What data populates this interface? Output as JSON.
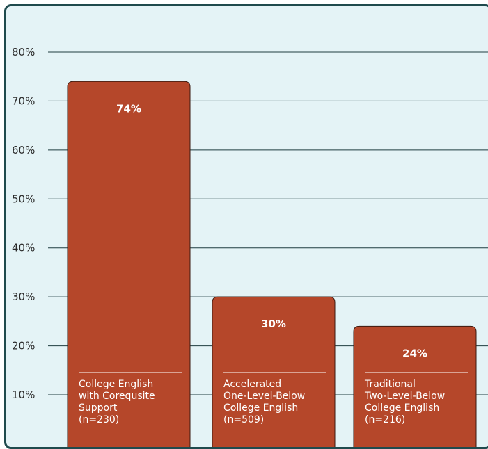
{
  "chart_data": {
    "type": "bar",
    "categories": [
      [
        "College English",
        "with Corequsite",
        "Support",
        "(n=230)"
      ],
      [
        "Accelerated",
        "One-Level-Below",
        "College English",
        "(n=509)"
      ],
      [
        "Traditional",
        "Two-Level-Below",
        "College English",
        "(n=216)"
      ]
    ],
    "values": [
      74,
      30,
      24
    ],
    "value_labels": [
      "74%",
      "30%",
      "24%"
    ],
    "y_ticks": [
      "10%",
      "20%",
      "30%",
      "40%",
      "50%",
      "60%",
      "70%",
      "80%"
    ],
    "ylim": [
      0,
      80
    ],
    "grid": true,
    "colors": {
      "bar": "#b5472a",
      "background": "#e4f3f6",
      "border": "#1f4a4d"
    }
  }
}
